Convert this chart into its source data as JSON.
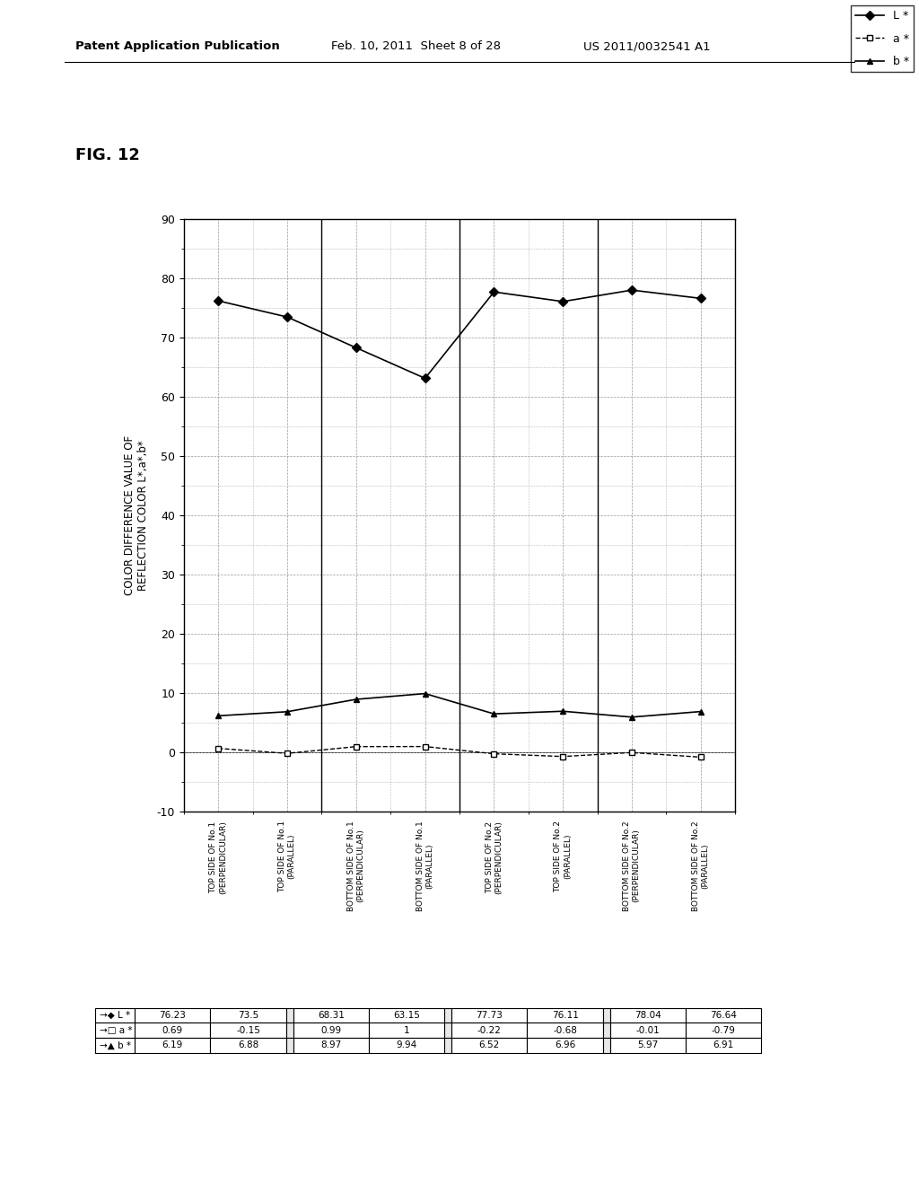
{
  "ylabel": "COLOR DIFFERENCE VALUE OF\nREFLECTION COLOR L*,a*,b*",
  "ylim": [
    -10,
    90
  ],
  "yticks": [
    -10,
    0,
    10,
    20,
    30,
    40,
    50,
    60,
    70,
    80,
    90
  ],
  "categories": [
    "TOP SIDE OF No.1\n(PERPENDICULAR)",
    "TOP SIDE OF No.1\n(PARALLEL)",
    "BOTTOM SIDE OF No.1\n(PERPENDICULAR)",
    "BOTTOM SIDE OF No.1\n(PARALLEL)",
    "TOP SIDE OF No.2\n(PERPENDICULAR)",
    "TOP SIDE OF No.2\n(PARALLEL)",
    "BOTTOM SIDE OF No.2\n(PERPENDICULAR)",
    "BOTTOM SIDE OF No.2\n(PARALLEL)"
  ],
  "L_star": [
    76.23,
    73.5,
    68.31,
    63.15,
    77.73,
    76.11,
    78.04,
    76.64
  ],
  "a_star": [
    0.69,
    -0.15,
    0.99,
    1.0,
    -0.22,
    -0.68,
    -0.01,
    -0.79
  ],
  "b_star": [
    6.19,
    6.88,
    8.97,
    9.94,
    6.52,
    6.96,
    5.97,
    6.91
  ],
  "table_L": [
    "76.23",
    "73.5",
    "",
    "68.31",
    "63.15",
    "",
    "77.73",
    "76.11",
    "",
    "78.04",
    "76.64"
  ],
  "table_a": [
    "0.69",
    "-0.15",
    "",
    "0.99",
    "1",
    "",
    "-0.22",
    "-0.68",
    "",
    "-0.01",
    "-0.79"
  ],
  "table_b": [
    "6.19",
    "6.88",
    "",
    "8.97",
    "9.94",
    "",
    "6.52",
    "6.96",
    "",
    "5.97",
    "6.91"
  ],
  "header_left": "Patent Application Publication",
  "header_mid": "Feb. 10, 2011  Sheet 8 of 28",
  "header_right": "US 2011/0032541 A1",
  "fig_label": "FIG. 12",
  "legend_labels": [
    "L *",
    "a *",
    "b *"
  ]
}
